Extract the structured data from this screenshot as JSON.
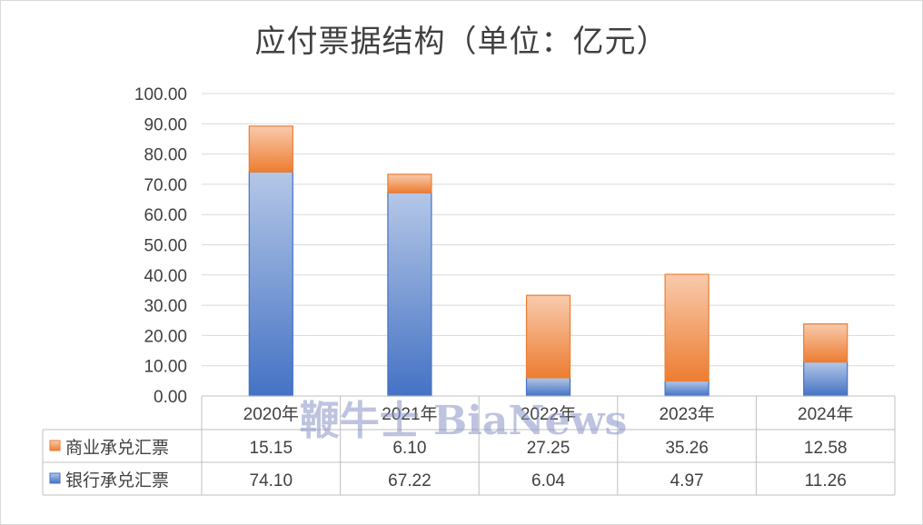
{
  "title": "应付票据结构（单位：亿元）",
  "watermark": "鞭牛士 BiaNews",
  "colors": {
    "commercial": "#ED7D31",
    "bank": "#4472C4",
    "grid": "#d9d9d9",
    "text": "#404040"
  },
  "chart_data": {
    "type": "bar",
    "stacked": true,
    "title": "应付票据结构（单位：亿元）",
    "categories": [
      "2020年",
      "2021年",
      "2022年",
      "2023年",
      "2024年"
    ],
    "series": [
      {
        "name": "商业承兑汇票",
        "values": [
          15.15,
          6.1,
          27.25,
          35.26,
          12.58
        ],
        "labels": [
          "15.15",
          "6.10",
          "27.25",
          "35.26",
          "12.58"
        ]
      },
      {
        "name": "银行承兑汇票",
        "values": [
          74.1,
          67.22,
          6.04,
          4.97,
          11.26
        ],
        "labels": [
          "74.10",
          "67.22",
          "6.04",
          "4.97",
          "11.26"
        ]
      }
    ],
    "stack_order_bottom_to_top": [
      "银行承兑汇票",
      "商业承兑汇票"
    ],
    "ylim": [
      0,
      100
    ],
    "yticks": [
      "0.00",
      "10.00",
      "20.00",
      "30.00",
      "40.00",
      "50.00",
      "60.00",
      "70.00",
      "80.00",
      "90.00",
      "100.00"
    ],
    "grid": true,
    "legend": "data-table"
  }
}
